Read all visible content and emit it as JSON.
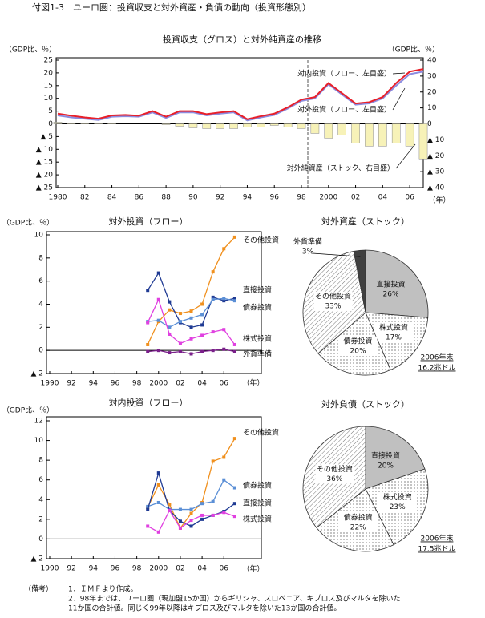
{
  "title": "付図1-3　ユーロ圏：投資収支と対外資産・負債の動向（投資形態別）",
  "notes": {
    "label": "（備考）",
    "items": [
      "1．ＩＭＦより作成。",
      "2．98年までは、ユーロ圏（現加盟15か国）からギリシャ、スロベニア、キプロス及びマルタを除いた",
      "11か国の合計値。同じく99年以降はキプロス及びマルタを除いた13か国の合計値。"
    ]
  },
  "chart_data": [
    {
      "type": "combo",
      "title": "投資収支（グロス）と対外純資産の推移",
      "y_label": "（GDP比、％）",
      "y2_label": "（GDP比、％）",
      "x_label": "（年）",
      "x": [
        1980,
        1981,
        1982,
        1983,
        1984,
        1985,
        1986,
        1987,
        1988,
        1989,
        1990,
        1991,
        1992,
        1993,
        1994,
        1995,
        1996,
        1997,
        1998,
        1999,
        2000,
        2001,
        2002,
        2003,
        2004,
        2005,
        2006,
        2007
      ],
      "xlim": [
        1980,
        2007
      ],
      "xticks": [
        1980,
        {
          "value": 1982,
          "label": "82"
        },
        {
          "value": 1984,
          "label": "84"
        },
        {
          "value": 1986,
          "label": "86"
        },
        {
          "value": 1988,
          "label": "88"
        },
        {
          "value": 1990,
          "label": "90"
        },
        {
          "value": 1992,
          "label": "92"
        },
        {
          "value": 1994,
          "label": "94"
        },
        {
          "value": 1996,
          "label": "96"
        },
        {
          "value": 1998,
          "label": "98"
        },
        2000,
        {
          "value": 2002,
          "label": "02"
        },
        {
          "value": 2004,
          "label": "04"
        },
        {
          "value": 2006,
          "label": "06"
        }
      ],
      "ylim": [
        -25,
        25
      ],
      "yticks": [
        {
          "value": -25,
          "label": "▲ 25"
        },
        {
          "value": -20,
          "label": "▲ 20"
        },
        {
          "value": -15,
          "label": "▲ 15"
        },
        {
          "value": -10,
          "label": "▲ 10"
        },
        {
          "value": -5,
          "label": "▲ 5"
        },
        0,
        5,
        10,
        15,
        20,
        25
      ],
      "y2lim": [
        -40,
        40
      ],
      "y2ticks": [
        {
          "value": -40,
          "label": "▲ 40"
        },
        {
          "value": -30,
          "label": "▲ 30"
        },
        {
          "value": -20,
          "label": "▲ 20"
        },
        {
          "value": -10,
          "label": "▲ 10"
        },
        0,
        10,
        20,
        30,
        40
      ],
      "series": [
        {
          "name": "対外純資産（ストック、右目盛）",
          "kind": "bar",
          "axis": "y2",
          "color": "#f7f2b8",
          "values": [
            1,
            0.5,
            0.5,
            0.5,
            0.5,
            0,
            0,
            0,
            -0.5,
            -1.5,
            -2.5,
            -3,
            -3,
            -3,
            -2,
            -2,
            -1,
            -2,
            -3,
            -6,
            -9,
            -7,
            -12,
            -14,
            -14,
            -12,
            -14,
            -22
          ]
        },
        {
          "name": "対外投資（フロー、左目盛）",
          "kind": "line",
          "color": "#8c8ce0",
          "values": [
            3.3,
            2.5,
            2,
            1.5,
            2.8,
            3,
            2.8,
            4.5,
            2.3,
            4.5,
            4.5,
            3.3,
            4,
            4.5,
            1.3,
            2.5,
            3.5,
            6,
            9,
            10,
            15.5,
            11.5,
            7.5,
            8,
            10,
            15,
            19.5,
            20.5
          ]
        },
        {
          "name": "対内投資（フロー、左目盛）",
          "kind": "line",
          "color": "#e8202a",
          "values": [
            4,
            3.2,
            2.5,
            2,
            3.3,
            3.5,
            3.2,
            5,
            2.8,
            5,
            5,
            3.8,
            4.5,
            5,
            1.8,
            3,
            4,
            6.5,
            9.5,
            10.5,
            16,
            12,
            8,
            8.5,
            10.5,
            16,
            20.5,
            21.5
          ]
        }
      ]
    },
    {
      "type": "line",
      "title": "対外投資（フロー）",
      "y_label": "（GDP比、％）",
      "x_label": "（年）",
      "x": [
        1999,
        2000,
        2001,
        2002,
        2003,
        2004,
        2005,
        2006,
        2007
      ],
      "xlim": [
        1990,
        2009
      ],
      "xticks": [
        1990,
        {
          "value": 1992,
          "label": "92"
        },
        {
          "value": 1994,
          "label": "94"
        },
        {
          "value": 1996,
          "label": "96"
        },
        {
          "value": 1998,
          "label": "98"
        },
        2000,
        {
          "value": 2002,
          "label": "02"
        },
        {
          "value": 2004,
          "label": "04"
        },
        {
          "value": 2006,
          "label": "06"
        }
      ],
      "ylim": [
        -2,
        10
      ],
      "yticks": [
        {
          "value": -2,
          "label": "▲ 2"
        },
        0,
        2,
        4,
        6,
        8,
        10
      ],
      "series": [
        {
          "name": "その他投資",
          "color": "#f0901e",
          "values": [
            0.5,
            2.5,
            3.5,
            3.2,
            3.4,
            4,
            6.8,
            8.8,
            9.8
          ]
        },
        {
          "name": "直接投資",
          "color": "#1f3a93",
          "values": [
            5.2,
            6.7,
            4.2,
            2.4,
            2,
            2.2,
            4.6,
            4.3,
            4.5
          ]
        },
        {
          "name": "債券投資",
          "color": "#5b8fd6",
          "values": [
            2.5,
            2.6,
            2,
            2.5,
            2.8,
            3.1,
            4.4,
            4.5,
            4.3
          ]
        },
        {
          "name": "株式投資",
          "color": "#e040e0",
          "values": [
            2.4,
            4.4,
            1.4,
            0.6,
            1,
            1.3,
            1.6,
            1.8,
            0.5
          ]
        },
        {
          "name": "外貨準備",
          "color": "#7a1f8a",
          "values": [
            -0.1,
            0,
            -0.2,
            -0.1,
            -0.3,
            -0.1,
            0,
            0.1,
            -0.1
          ]
        }
      ]
    },
    {
      "type": "pie",
      "title": "対外資産（ストック）",
      "annotations": [
        "2006年末",
        "16.2兆ドル"
      ],
      "categories": [
        "直接投資",
        "株式投資",
        "債券投資",
        "その他投資",
        "外貨準備"
      ],
      "values": [
        26,
        17,
        20,
        33,
        3
      ],
      "value_labels": [
        "26%",
        "17%",
        "20%",
        "33%",
        "3%"
      ],
      "colors": [
        "#c0c0c0",
        "#ffffff",
        "#ffffff",
        "#ffffff",
        "#404040"
      ],
      "patterns": [
        null,
        "dots",
        "dots",
        "hatch",
        null
      ]
    },
    {
      "type": "line",
      "title": "対内投資（フロー）",
      "y_label": "（GDP比、％）",
      "x_label": "（年）",
      "x": [
        1999,
        2000,
        2001,
        2002,
        2003,
        2004,
        2005,
        2006,
        2007
      ],
      "xlim": [
        1990,
        2009
      ],
      "xticks": [
        1990,
        {
          "value": 1992,
          "label": "92"
        },
        {
          "value": 1994,
          "label": "94"
        },
        {
          "value": 1996,
          "label": "96"
        },
        {
          "value": 1998,
          "label": "98"
        },
        2000,
        {
          "value": 2002,
          "label": "02"
        },
        {
          "value": 2004,
          "label": "04"
        },
        {
          "value": 2006,
          "label": "06"
        }
      ],
      "ylim": [
        -2,
        12
      ],
      "yticks": [
        {
          "value": -2,
          "label": "▲ 2"
        },
        0,
        2,
        4,
        6,
        8,
        10,
        12
      ],
      "series": [
        {
          "name": "その他投資",
          "color": "#f0901e",
          "values": [
            3.2,
            5.5,
            3.5,
            1.1,
            2.6,
            3.7,
            7.9,
            8.3,
            10.2
          ]
        },
        {
          "name": "債券投資",
          "color": "#5b8fd6",
          "values": [
            3.3,
            3.7,
            3,
            3,
            3,
            3.6,
            3.8,
            6,
            5.2
          ]
        },
        {
          "name": "直接投資",
          "color": "#1f3a93",
          "values": [
            3,
            6.7,
            2.9,
            1.8,
            1.3,
            2,
            2.4,
            2.8,
            3.6
          ]
        },
        {
          "name": "株式投資",
          "color": "#e040e0",
          "values": [
            1.3,
            0.7,
            2.9,
            1.1,
            1.9,
            2.4,
            2.4,
            2.7,
            2.3
          ]
        }
      ]
    },
    {
      "type": "pie",
      "title": "対外負債（ストック）",
      "annotations": [
        "2006年末",
        "17.5兆ドル"
      ],
      "categories": [
        "直接投資",
        "株式投資",
        "債券投資",
        "その他投資"
      ],
      "values": [
        20,
        23,
        22,
        36
      ],
      "value_labels": [
        "20%",
        "23%",
        "22%",
        "36%"
      ],
      "colors": [
        "#c0c0c0",
        "#ffffff",
        "#ffffff",
        "#ffffff"
      ],
      "patterns": [
        null,
        "dots",
        "dots",
        "hatch"
      ]
    }
  ]
}
